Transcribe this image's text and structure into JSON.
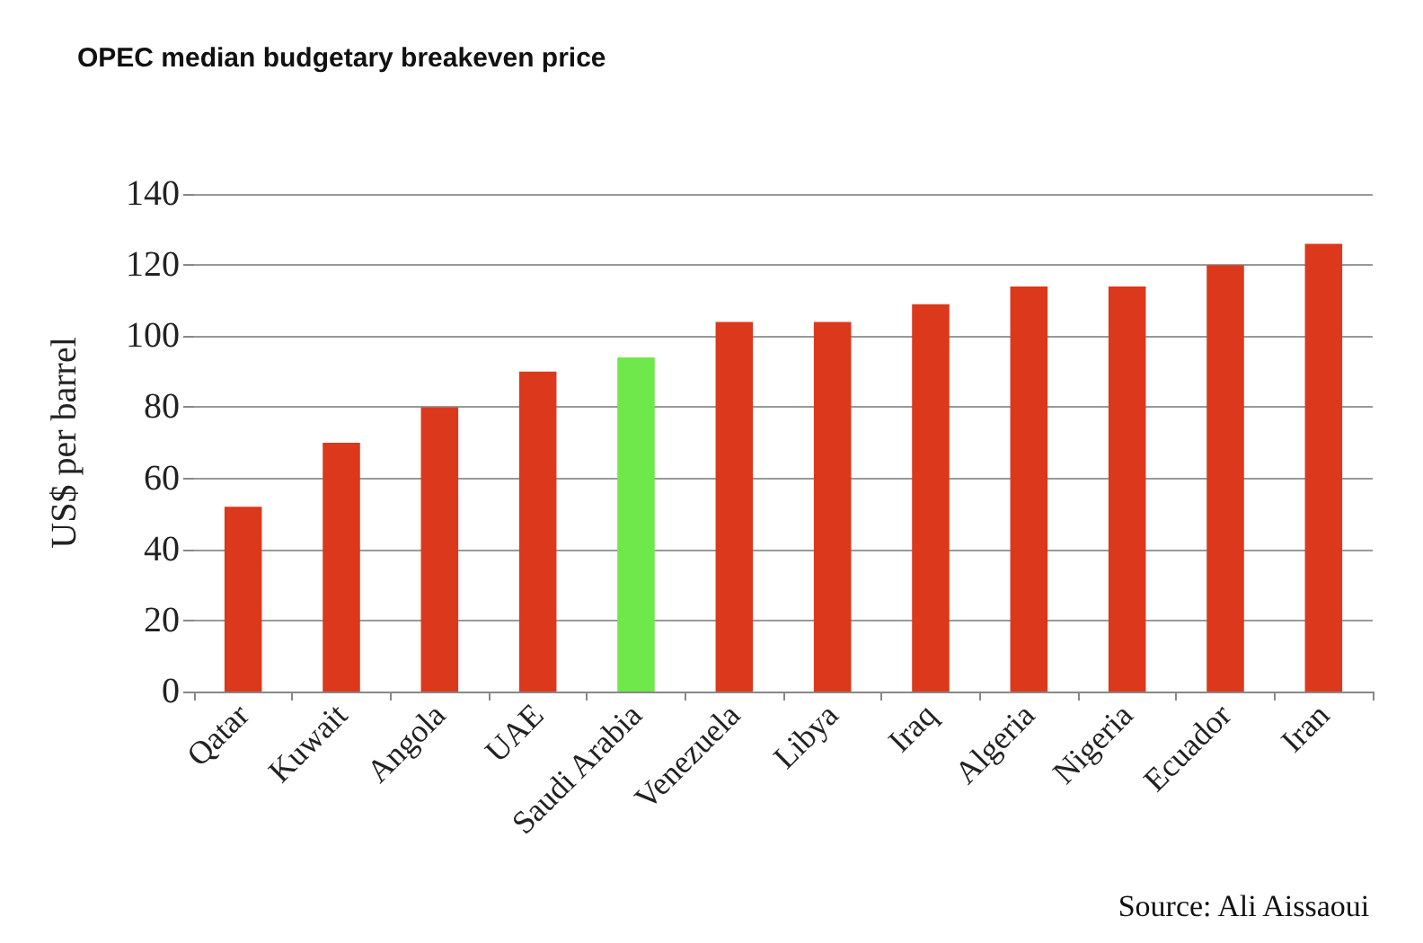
{
  "chart_data": {
    "type": "bar",
    "title": "OPEC median budgetary breakeven price",
    "ylabel": "US$ per barrel",
    "categories": [
      "Qatar",
      "Kuwait",
      "Angola",
      "UAE",
      "Saudi Arabia",
      "Venezuela",
      "Libya",
      "Iraq",
      "Algeria",
      "Nigeria",
      "Ecuador",
      "Iran"
    ],
    "values": [
      52,
      70,
      80,
      90,
      94,
      104,
      104,
      109,
      114,
      114,
      120,
      126
    ],
    "colors": [
      "#dc381c",
      "#dc381c",
      "#dc381c",
      "#dc381c",
      "#6ee84a",
      "#dc381c",
      "#dc381c",
      "#dc381c",
      "#dc381c",
      "#dc381c",
      "#dc381c",
      "#dc381c"
    ],
    "ylim": [
      0,
      140
    ],
    "yticks": [
      0,
      20,
      40,
      60,
      80,
      100,
      120,
      140
    ],
    "grid": "y",
    "annotations": [
      "Source: Ali Aissaoui"
    ]
  }
}
